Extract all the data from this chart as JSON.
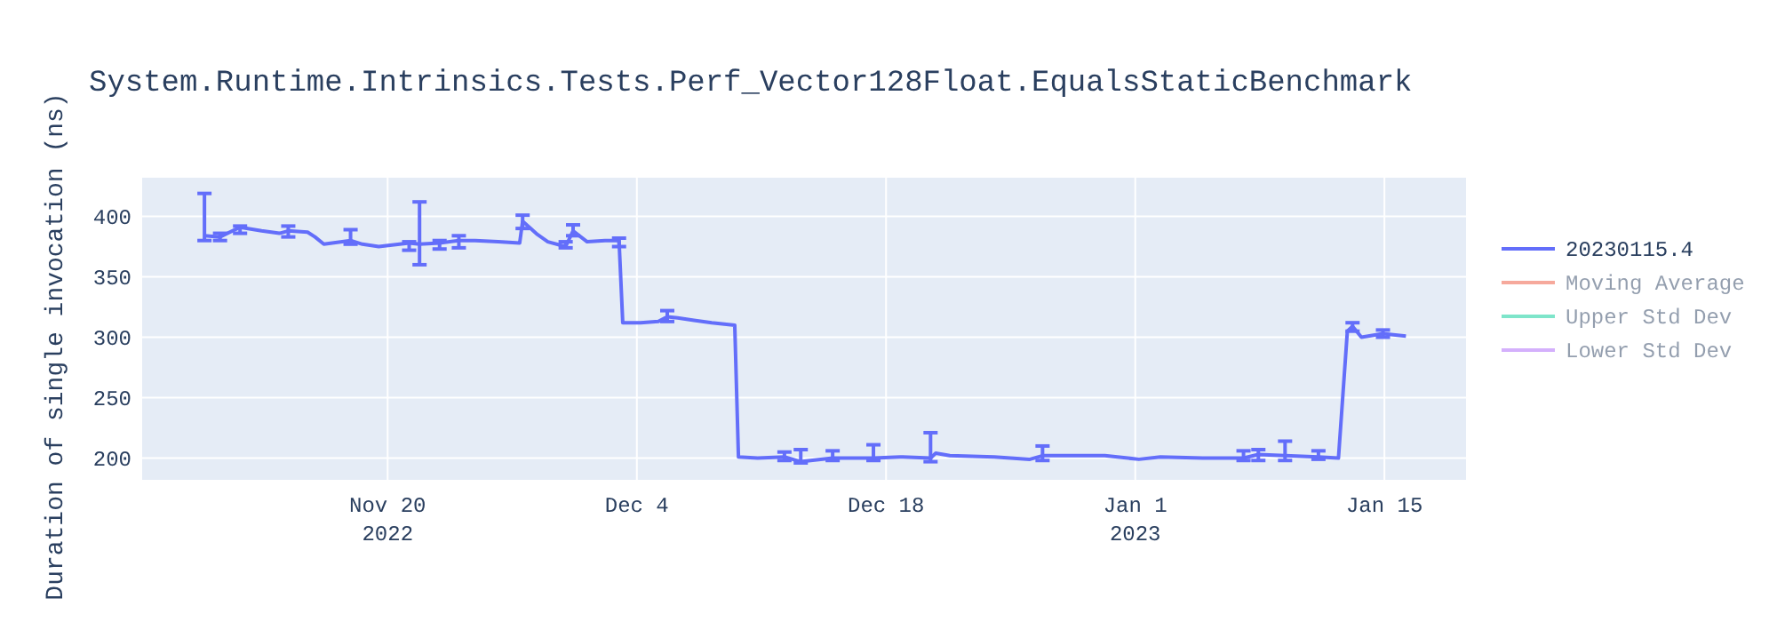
{
  "chart_data": {
    "type": "line",
    "title": "System.Runtime.Intrinsics.Tests.Perf_Vector128Float.EqualsStaticBenchmark",
    "ylabel": "Duration of single invocation (ns)",
    "x": [
      "2022-11-09T17:00",
      "2022-11-10T14:00",
      "2022-11-11T17:00",
      "2022-11-12T22:00",
      "2022-11-13T22:00",
      "2022-11-14T10:00",
      "2022-11-15T12:00",
      "2022-11-15T22:00",
      "2022-11-16T10:00",
      "2022-11-17T22:00",
      "2022-11-18T14:00",
      "2022-11-19T12:00",
      "2022-11-21T05:00",
      "2022-11-21T19:00",
      "2022-11-22T22:00",
      "2022-11-24T00:00",
      "2022-11-24T22:00",
      "2022-11-26T05:00",
      "2022-11-27T10:00",
      "2022-11-27T14:00",
      "2022-11-28T10:00",
      "2022-11-29T00:00",
      "2022-11-30T00:00",
      "2022-11-30T10:00",
      "2022-12-01T05:00",
      "2022-12-02T05:00",
      "2022-12-03T00:00",
      "2022-12-03T05:00",
      "2022-12-04T05:00",
      "2022-12-05T05:00",
      "2022-12-05T17:00",
      "2022-12-06T07:00",
      "2022-12-07T05:00",
      "2022-12-08T05:00",
      "2022-12-09T12:00",
      "2022-12-09T17:00",
      "2022-12-10T19:00",
      "2022-12-12T07:00",
      "2022-12-13T05:00",
      "2022-12-15T00:00",
      "2022-12-17T07:00",
      "2022-12-18T19:00",
      "2022-12-20T12:00",
      "2022-12-20T19:00",
      "2022-12-21T14:00",
      "2022-12-24T02:00",
      "2022-12-26T02:00",
      "2022-12-26T19:00",
      "2022-12-30T07:00",
      "2023-01-01T05:00",
      "2023-01-02T10:00",
      "2023-01-04T19:00",
      "2023-01-07T02:00",
      "2023-01-07T22:00",
      "2023-01-09T10:00",
      "2023-01-11T07:00",
      "2023-01-12T10:00",
      "2023-01-12T22:00",
      "2023-01-13T05:00",
      "2023-01-13T17:00",
      "2023-01-14T22:00",
      "2023-01-16T05:00"
    ],
    "series": [
      {
        "name": "20230115.4",
        "color": "#636efa",
        "values": [
          384,
          383,
          391,
          388,
          386,
          388,
          387,
          383,
          377,
          380,
          377,
          375,
          378,
          377,
          378,
          380,
          380,
          379,
          378,
          396,
          385,
          379,
          375,
          388,
          379,
          380,
          380,
          312,
          312,
          313,
          317,
          316,
          314,
          312,
          310,
          201,
          200,
          201,
          197,
          200,
          200,
          201,
          200,
          204,
          202,
          201,
          199,
          202,
          202,
          199,
          201,
          200,
          200,
          203,
          202,
          201,
          200,
          305,
          309,
          300,
          303,
          301
        ],
        "errors": [
          [
            380,
            419
          ],
          [
            380,
            386
          ],
          [
            386,
            392
          ],
          null,
          null,
          [
            383,
            392
          ],
          null,
          null,
          null,
          [
            377,
            389
          ],
          null,
          null,
          [
            372,
            379
          ],
          [
            360,
            412
          ],
          [
            373,
            380
          ],
          [
            374,
            384
          ],
          null,
          null,
          null,
          [
            390,
            401
          ],
          null,
          null,
          [
            374,
            379
          ],
          [
            384,
            393
          ],
          null,
          null,
          [
            375,
            382
          ],
          null,
          null,
          null,
          [
            313,
            322
          ],
          null,
          null,
          null,
          null,
          null,
          null,
          [
            198,
            205
          ],
          [
            196,
            207
          ],
          [
            198,
            206
          ],
          [
            198,
            211
          ],
          null,
          [
            197,
            221
          ],
          null,
          null,
          null,
          null,
          [
            198,
            210
          ],
          null,
          null,
          null,
          null,
          [
            198,
            206
          ],
          [
            198,
            207
          ],
          [
            198,
            214
          ],
          [
            199,
            206
          ],
          null,
          null,
          [
            305,
            312
          ],
          null,
          [
            300,
            306
          ],
          null
        ]
      },
      {
        "name": "Moving Average",
        "color": "#ef553b",
        "values": [
          null,
          null,
          null,
          null,
          null,
          null,
          null,
          null,
          null,
          null,
          null,
          null,
          null,
          null,
          null,
          null,
          null,
          null,
          null,
          null,
          null,
          null,
          null,
          null,
          null,
          null,
          null,
          null,
          null,
          null,
          null,
          null,
          null,
          null,
          null,
          null,
          null,
          null,
          null,
          null,
          null,
          null,
          null,
          null,
          null,
          null,
          null,
          null,
          null,
          null,
          null,
          null,
          null,
          null,
          null,
          null,
          null,
          null,
          null,
          null,
          null,
          null
        ]
      },
      {
        "name": "Upper Std Dev",
        "color": "#00cc96",
        "values": [
          null,
          null,
          null,
          null,
          null,
          null,
          null,
          null,
          null,
          null,
          null,
          null,
          null,
          null,
          null,
          null,
          null,
          null,
          null,
          null,
          null,
          null,
          null,
          null,
          null,
          null,
          null,
          null,
          null,
          null,
          null,
          null,
          null,
          null,
          null,
          null,
          null,
          null,
          null,
          null,
          null,
          null,
          null,
          null,
          null,
          null,
          null,
          null,
          null,
          null,
          null,
          null,
          null,
          null,
          null,
          null,
          null,
          null,
          null,
          null,
          null,
          null
        ]
      },
      {
        "name": "Lower Std Dev",
        "color": "#ab63fa",
        "values": [
          null,
          null,
          null,
          null,
          null,
          null,
          null,
          null,
          null,
          null,
          null,
          null,
          null,
          null,
          null,
          null,
          null,
          null,
          null,
          null,
          null,
          null,
          null,
          null,
          null,
          null,
          null,
          null,
          null,
          null,
          null,
          null,
          null,
          null,
          null,
          null,
          null,
          null,
          null,
          null,
          null,
          null,
          null,
          null,
          null,
          null,
          null,
          null,
          null,
          null,
          null,
          null,
          null,
          null,
          null,
          null,
          null,
          null,
          null,
          null,
          null,
          null
        ]
      }
    ],
    "xlim": [
      "2022-11-06T05:00",
      "2023-01-19T14:00"
    ],
    "xticks": [
      {
        "value": "2022-11-20",
        "label": "Nov 20\n2022"
      },
      {
        "value": "2022-12-04",
        "label": "Dec 4"
      },
      {
        "value": "2022-12-18",
        "label": "Dec 18"
      },
      {
        "value": "2023-01-01",
        "label": "Jan 1\n2023"
      },
      {
        "value": "2023-01-15",
        "label": "Jan 15"
      }
    ],
    "ylim": [
      182,
      432
    ],
    "yticks": [
      200,
      250,
      300,
      350,
      400
    ],
    "grid": true,
    "legend": "top right",
    "marker": "none",
    "line_style": "solid"
  }
}
